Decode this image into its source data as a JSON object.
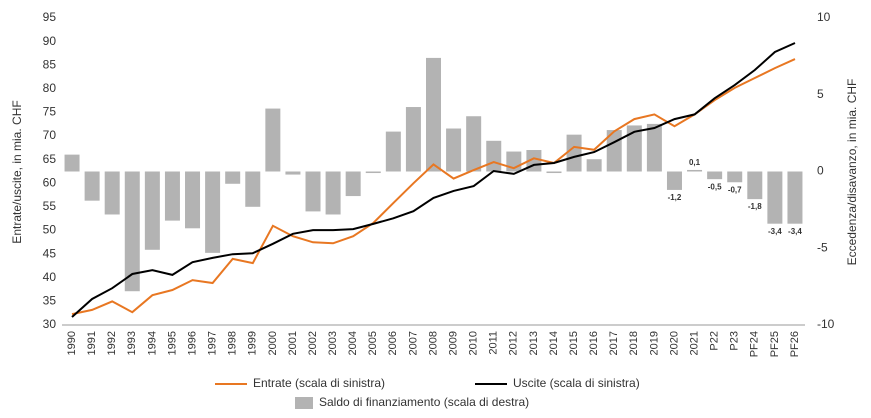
{
  "chart_data": {
    "type": "bar_line",
    "categories": [
      "1990",
      "1991",
      "1992",
      "1993",
      "1994",
      "1995",
      "1996",
      "1997",
      "1998",
      "1999",
      "2000",
      "2001",
      "2002",
      "2003",
      "2004",
      "2005",
      "2006",
      "2007",
      "2008",
      "2009",
      "2010",
      "2011",
      "2012",
      "2013",
      "2014",
      "2015",
      "2016",
      "2017",
      "2018",
      "2019",
      "2020",
      "2021",
      "P22",
      "P23",
      "PF24",
      "PF25",
      "PF26"
    ],
    "y_label": "Entrate/uscite, in mia. CHF",
    "y2_label": "Eccedenza/disavanzo, in mia. CHF",
    "ylim": [
      30,
      95
    ],
    "yticks": [
      30,
      35,
      40,
      45,
      50,
      55,
      60,
      65,
      70,
      75,
      80,
      85,
      90,
      95
    ],
    "y2lim": [
      -10,
      10
    ],
    "y2ticks": [
      -10,
      -5,
      0,
      5,
      10
    ],
    "legend": "bottom",
    "series": [
      {
        "name": "Entrate (scala di sinistra)",
        "type": "line",
        "color": "#e87722",
        "values": [
          32.3,
          33.2,
          35.0,
          32.7,
          36.3,
          37.4,
          39.5,
          38.9,
          44.0,
          43.1,
          51.0,
          48.8,
          47.5,
          47.3,
          48.8,
          51.6,
          55.8,
          60.0,
          64.0,
          61.0,
          62.8,
          64.5,
          63.2,
          65.3,
          64.3,
          67.7,
          67.1,
          71.0,
          73.6,
          74.6,
          72.1,
          74.6,
          77.6,
          80.2,
          82.3,
          84.4,
          86.3
        ]
      },
      {
        "name": "Uscite (scala di sinistra)",
        "type": "line",
        "color": "#000000",
        "values": [
          31.7,
          35.5,
          37.8,
          40.8,
          41.6,
          40.6,
          43.3,
          44.2,
          45.0,
          45.2,
          47.2,
          49.3,
          50.1,
          50.1,
          50.3,
          51.4,
          52.6,
          54.1,
          56.9,
          58.4,
          59.4,
          62.6,
          62.0,
          63.9,
          64.3,
          65.6,
          66.6,
          68.7,
          70.9,
          71.7,
          73.6,
          74.6,
          78.0,
          80.8,
          84.0,
          87.8,
          89.7
        ]
      },
      {
        "name": "Saldo di finanziamento (scala di destra)",
        "type": "bar",
        "axis": "y2",
        "color": "#b3b3b3",
        "values": [
          1.1,
          -1.9,
          -2.8,
          -7.8,
          -5.1,
          -3.2,
          -3.7,
          -5.3,
          -0.8,
          -2.3,
          4.1,
          -0.2,
          -2.6,
          -2.8,
          -1.6,
          -0.1,
          2.6,
          4.2,
          7.4,
          2.8,
          3.6,
          2.0,
          1.3,
          1.4,
          -0.1,
          2.4,
          0.8,
          2.7,
          3.0,
          3.1,
          -1.2,
          0.1,
          -0.5,
          -0.7,
          -1.8,
          -3.4,
          -3.4
        ],
        "value_labels": [
          null,
          null,
          null,
          null,
          null,
          null,
          null,
          null,
          null,
          null,
          null,
          null,
          null,
          null,
          null,
          null,
          null,
          null,
          null,
          null,
          null,
          null,
          null,
          null,
          null,
          null,
          null,
          null,
          null,
          null,
          "-1,2",
          "0,1",
          "-0,5",
          "-0,7",
          "-1,8",
          "-3,4",
          "-3,4"
        ]
      }
    ]
  }
}
